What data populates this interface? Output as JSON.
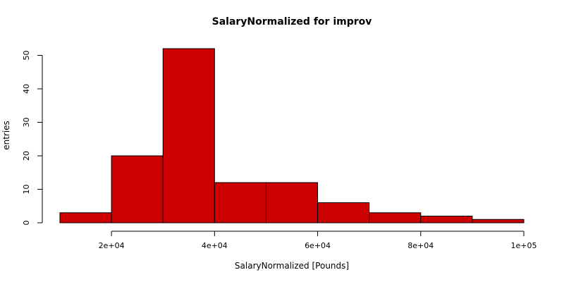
{
  "chart_data": {
    "type": "bar",
    "title": "SalaryNormalized for improv",
    "xlabel": "SalaryNormalized [Pounds]",
    "ylabel": "entries",
    "bins": [
      {
        "x0": 10000,
        "x1": 20000,
        "count": 3
      },
      {
        "x0": 20000,
        "x1": 30000,
        "count": 20
      },
      {
        "x0": 30000,
        "x1": 40000,
        "count": 52
      },
      {
        "x0": 40000,
        "x1": 50000,
        "count": 12
      },
      {
        "x0": 50000,
        "x1": 60000,
        "count": 12
      },
      {
        "x0": 60000,
        "x1": 70000,
        "count": 6
      },
      {
        "x0": 70000,
        "x1": 80000,
        "count": 3
      },
      {
        "x0": 80000,
        "x1": 90000,
        "count": 2
      },
      {
        "x0": 90000,
        "x1": 100000,
        "count": 1
      }
    ],
    "xlim": [
      10000,
      100000
    ],
    "ylim": [
      0,
      52
    ],
    "x_ticks": [
      {
        "value": 20000,
        "label": "2e+04"
      },
      {
        "value": 40000,
        "label": "4e+04"
      },
      {
        "value": 60000,
        "label": "6e+04"
      },
      {
        "value": 80000,
        "label": "8e+04"
      },
      {
        "value": 100000,
        "label": "1e+05"
      }
    ],
    "y_ticks": [
      {
        "value": 0,
        "label": "0"
      },
      {
        "value": 10,
        "label": "10"
      },
      {
        "value": 20,
        "label": "20"
      },
      {
        "value": 30,
        "label": "30"
      },
      {
        "value": 40,
        "label": "40"
      },
      {
        "value": 50,
        "label": "50"
      }
    ],
    "bar_color": "#cc0000",
    "grid": false,
    "legend": "none"
  }
}
